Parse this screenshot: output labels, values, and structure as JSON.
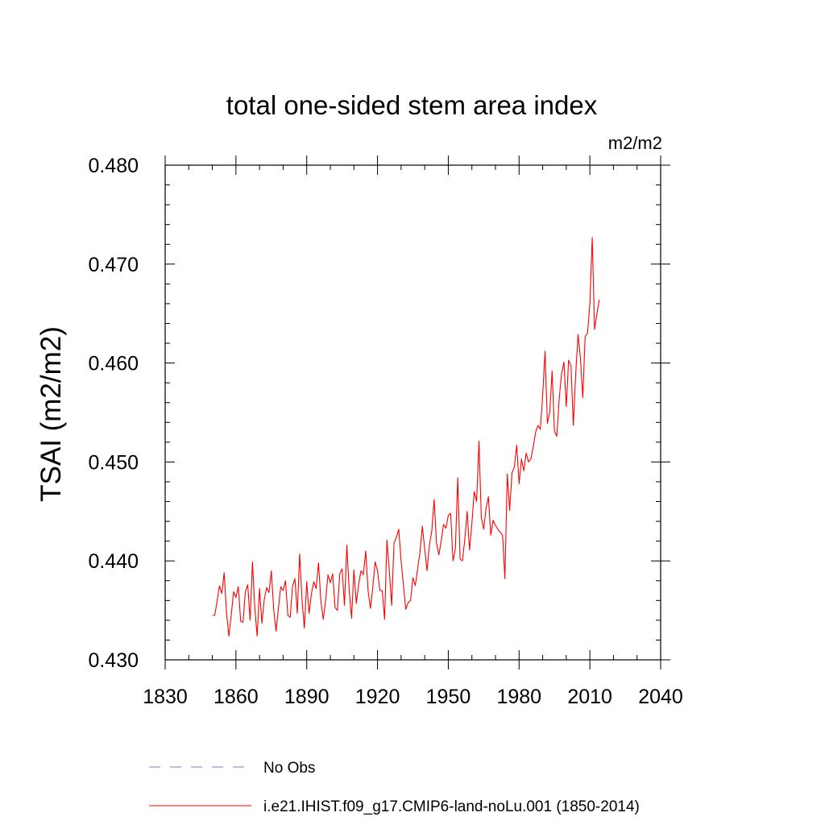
{
  "chart_data": {
    "type": "line",
    "title": "total one-sided stem area index",
    "units": "m2/m2",
    "xlabel": "",
    "ylabel": "TSAI  (m2/m2)",
    "xlim": [
      1830,
      2040
    ],
    "ylim": [
      0.43,
      0.48
    ],
    "x_ticks": [
      1830,
      1860,
      1890,
      1920,
      1950,
      1980,
      2010,
      2040
    ],
    "x_tick_labels": [
      "1830",
      "1860",
      "1890",
      "1920",
      "1950",
      "1980",
      "2010",
      "2040"
    ],
    "y_ticks": [
      0.43,
      0.44,
      0.45,
      0.46,
      0.47,
      0.48
    ],
    "y_tick_labels": [
      "0.430",
      "0.440",
      "0.450",
      "0.460",
      "0.470",
      "0.480"
    ],
    "grid": false,
    "legend_position": "bottom",
    "legend": [
      {
        "label": "No Obs",
        "color": "#7b7bd6",
        "style": "dashed"
      },
      {
        "label": "i.e21.IHIST.f09_g17.CMIP6-land-noLu.001 (1850-2014)",
        "color": "#ff0000",
        "style": "solid"
      }
    ],
    "series": [
      {
        "name": "i.e21.IHIST.f09_g17.CMIP6-land-noLu.001 (1850-2014)",
        "color": "#ff0000",
        "x_start": 1850,
        "x_step": 1,
        "values": [
          0.4345,
          0.4345,
          0.4359,
          0.4375,
          0.4367,
          0.4388,
          0.4348,
          0.4324,
          0.4345,
          0.4369,
          0.4363,
          0.4374,
          0.4339,
          0.4338,
          0.4369,
          0.4376,
          0.434,
          0.4399,
          0.4352,
          0.4324,
          0.4372,
          0.4337,
          0.4361,
          0.4373,
          0.4368,
          0.439,
          0.4351,
          0.4329,
          0.4352,
          0.4374,
          0.437,
          0.438,
          0.4345,
          0.4343,
          0.4375,
          0.4382,
          0.4347,
          0.4407,
          0.4361,
          0.4332,
          0.4379,
          0.4347,
          0.4367,
          0.4379,
          0.4372,
          0.4398,
          0.4359,
          0.4341,
          0.436,
          0.4386,
          0.4378,
          0.4387,
          0.4353,
          0.435,
          0.4387,
          0.4392,
          0.4355,
          0.4416,
          0.437,
          0.4342,
          0.4391,
          0.4357,
          0.4376,
          0.439,
          0.4386,
          0.441,
          0.437,
          0.4352,
          0.4373,
          0.4399,
          0.439,
          0.437,
          0.437,
          0.4341,
          0.4421,
          0.439,
          0.4355,
          0.4418,
          0.4424,
          0.4432,
          0.44,
          0.4375,
          0.4351,
          0.4358,
          0.436,
          0.4383,
          0.4375,
          0.4392,
          0.4409,
          0.4435,
          0.4412,
          0.439,
          0.4416,
          0.443,
          0.4462,
          0.4418,
          0.4406,
          0.442,
          0.4437,
          0.4433,
          0.4446,
          0.4448,
          0.44,
          0.4412,
          0.4484,
          0.4402,
          0.44,
          0.4422,
          0.445,
          0.4411,
          0.4438,
          0.447,
          0.446,
          0.4521,
          0.4444,
          0.4432,
          0.4453,
          0.4465,
          0.4426,
          0.4441,
          0.4436,
          0.4432,
          0.4429,
          0.4426,
          0.4382,
          0.4488,
          0.4451,
          0.4489,
          0.4495,
          0.4517,
          0.4478,
          0.4503,
          0.4491,
          0.4509,
          0.45,
          0.4503,
          0.4515,
          0.453,
          0.4537,
          0.4533,
          0.4567,
          0.4612,
          0.4539,
          0.455,
          0.4592,
          0.4531,
          0.4526,
          0.4564,
          0.4589,
          0.4601,
          0.4556,
          0.4603,
          0.4597,
          0.4537,
          0.4589,
          0.4629,
          0.4605,
          0.4565,
          0.4627,
          0.463,
          0.466,
          0.4727,
          0.4634,
          0.465,
          0.4664
        ]
      }
    ]
  }
}
